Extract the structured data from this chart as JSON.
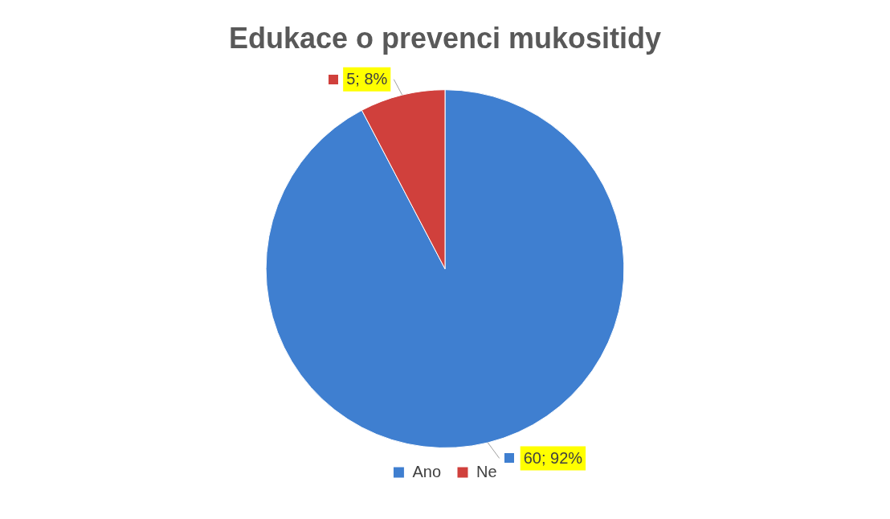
{
  "chart_data": {
    "type": "pie",
    "title": "Edukace o prevenci mukositidy",
    "categories": [
      "Ano",
      "Ne"
    ],
    "values": [
      60,
      5
    ],
    "colors": [
      "#3f7fd0",
      "#d0403c"
    ],
    "value_labels": [
      "60; 92%",
      "5; 8%"
    ],
    "legend": "bottom"
  }
}
